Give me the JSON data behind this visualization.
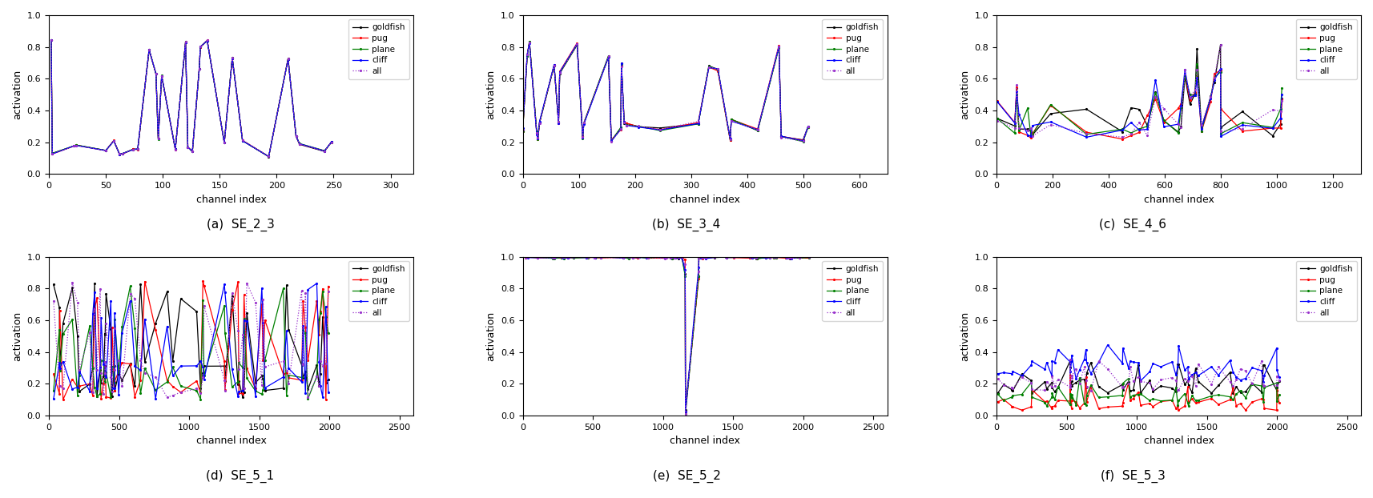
{
  "subplots": [
    {
      "label": "(a)  SE_2_3",
      "xlim": [
        0,
        320
      ],
      "xticks": [
        0,
        50,
        100,
        150,
        200,
        250,
        300
      ],
      "n_channels": 256,
      "n_points": 30,
      "seed": 7
    },
    {
      "label": "(b)  SE_3_4",
      "xlim": [
        0,
        650
      ],
      "xticks": [
        0,
        100,
        200,
        300,
        400,
        500,
        600
      ],
      "n_channels": 512,
      "n_points": 30,
      "seed": 8
    },
    {
      "label": "(c)  SE_4_6",
      "xlim": [
        0,
        1300
      ],
      "xticks": [
        0,
        200,
        400,
        600,
        800,
        1000,
        1200
      ],
      "n_channels": 1024,
      "n_points": 30,
      "seed": 9
    },
    {
      "label": "(d)  SE_5_1",
      "xlim": [
        0,
        2600
      ],
      "xticks": [
        0,
        500,
        1000,
        1500,
        2000,
        2500
      ],
      "n_channels": 2048,
      "n_points": 60,
      "seed": 12
    },
    {
      "label": "(e)  SE_5_2",
      "xlim": [
        0,
        2600
      ],
      "xticks": [
        0,
        500,
        1000,
        1500,
        2000,
        2500
      ],
      "n_channels": 2048,
      "n_points": 60,
      "seed": 13
    },
    {
      "label": "(f)  SE_5_3",
      "xlim": [
        0,
        2600
      ],
      "xticks": [
        0,
        500,
        1000,
        1500,
        2000,
        2500
      ],
      "n_channels": 2048,
      "n_points": 60,
      "seed": 14
    }
  ],
  "series": [
    "goldfish",
    "pug",
    "plane",
    "cliff",
    "all"
  ],
  "colors": [
    "black",
    "red",
    "green",
    "blue",
    "#9932CC"
  ],
  "linestyles": [
    "-",
    "-",
    "-",
    "-",
    ":"
  ],
  "markers": [
    ".",
    ".",
    ".",
    ".",
    "."
  ],
  "ylabel": "activation",
  "xlabel": "channel index",
  "ylim": [
    0.0,
    1.0
  ],
  "yticks": [
    0.0,
    0.2,
    0.4,
    0.6,
    0.8,
    1.0
  ],
  "figsize": [
    17.14,
    6.22
  ],
  "dpi": 100
}
